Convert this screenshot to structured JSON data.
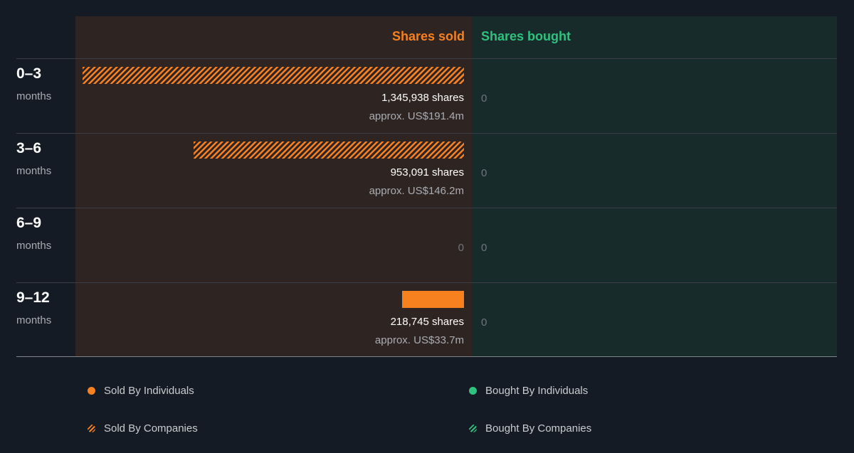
{
  "headers": {
    "sold": "Shares sold",
    "bought": "Shares bought"
  },
  "colors": {
    "sold": "#f7801f",
    "bought": "#2ec27e",
    "sold_panel": "#2e2422",
    "bought_panel": "#182b2b"
  },
  "chart_data": {
    "type": "bar",
    "categories": [
      "0–3 months",
      "3–6 months",
      "6–9 months",
      "9–12 months"
    ],
    "series": [
      {
        "name": "Sold By Companies",
        "values": [
          1345938,
          953091,
          0,
          0
        ]
      },
      {
        "name": "Sold By Individuals",
        "values": [
          0,
          0,
          0,
          218745
        ]
      },
      {
        "name": "Bought By Individuals",
        "values": [
          0,
          0,
          0,
          0
        ]
      },
      {
        "name": "Bought By Companies",
        "values": [
          0,
          0,
          0,
          0
        ]
      }
    ],
    "max_value": 1345938
  },
  "rows": [
    {
      "period": "0–3",
      "unit": "months",
      "shares": "1,345,938 shares",
      "approx": "approx. US$191.4m",
      "sold_zero": "",
      "bought": "0",
      "value": 1345938,
      "kind": "hatched"
    },
    {
      "period": "3–6",
      "unit": "months",
      "shares": "953,091 shares",
      "approx": "approx. US$146.2m",
      "sold_zero": "",
      "bought": "0",
      "value": 953091,
      "kind": "hatched"
    },
    {
      "period": "6–9",
      "unit": "months",
      "shares": "",
      "approx": "",
      "sold_zero": "0",
      "bought": "0",
      "value": 0,
      "kind": "none"
    },
    {
      "period": "9–12",
      "unit": "months",
      "shares": "218,745 shares",
      "approx": "approx. US$33.7m",
      "sold_zero": "",
      "bought": "0",
      "value": 218745,
      "kind": "solid"
    }
  ],
  "legend": {
    "sold_individuals": "Sold By Individuals",
    "bought_individuals": "Bought By Individuals",
    "sold_companies": "Sold By Companies",
    "bought_companies": "Bought By Companies"
  }
}
